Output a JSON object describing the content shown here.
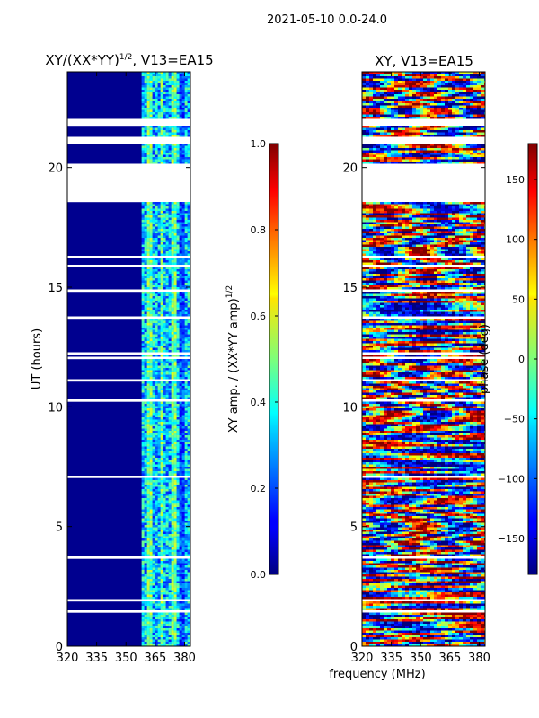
{
  "suptitle": "2021-05-10 0.0-24.0",
  "shared_xlabel": "frequency (MHz)",
  "chart_data": [
    {
      "type": "heatmap",
      "title_main": "XY/(XX*YY)",
      "title_sup": "1/2",
      "title_tail": ", V13=EA15",
      "ylabel": "UT (hours)",
      "xlim": [
        320,
        383
      ],
      "ylim": [
        0,
        24
      ],
      "xticks": [
        320,
        335,
        350,
        365,
        380
      ],
      "yticks": [
        0,
        5,
        10,
        15,
        20
      ],
      "colormap": "jet",
      "colorbar": {
        "label_main": "XY amp. / (XX*YY amp)",
        "label_sup": "1/2",
        "range": [
          0.0,
          1.0
        ],
        "ticks": [
          "0.0",
          "0.2",
          "0.4",
          "0.6",
          "0.8",
          "1.0"
        ],
        "tick_values": [
          0.0,
          0.2,
          0.4,
          0.6,
          0.8,
          1.0
        ]
      },
      "gap_hours": [
        [
          18.6,
          20.2
        ],
        [
          21.05,
          21.35
        ],
        [
          21.8,
          22.1
        ]
      ]
    },
    {
      "type": "heatmap",
      "title": "XY, V13=EA15",
      "xlim": [
        320,
        383
      ],
      "ylim": [
        0,
        24
      ],
      "xticks": [
        320,
        335,
        350,
        365,
        380
      ],
      "yticks": [
        0,
        5,
        10,
        15,
        20
      ],
      "colormap": "jet",
      "colorbar": {
        "label": "phase (deg)",
        "range": [
          -180,
          180
        ],
        "ticks": [
          "−150",
          "−100",
          "−50",
          "0",
          "50",
          "100",
          "150"
        ],
        "tick_values": [
          -150,
          -100,
          -50,
          0,
          50,
          100,
          150
        ]
      },
      "gap_hours": [
        [
          18.6,
          20.2
        ],
        [
          21.05,
          21.35
        ],
        [
          21.8,
          22.1
        ]
      ]
    }
  ]
}
